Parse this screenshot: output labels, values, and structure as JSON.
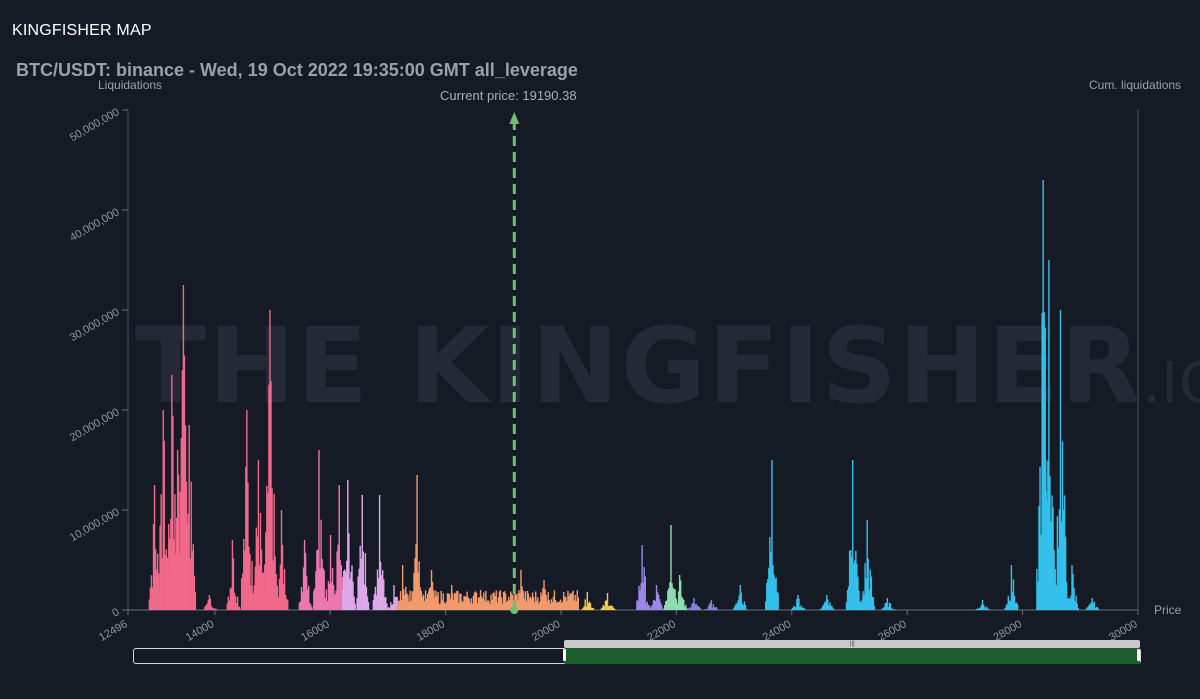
{
  "app": {
    "title": "KINGFISHER MAP"
  },
  "watermark": {
    "main": "THE KINGFISHER",
    "suffix": ".IO"
  },
  "chart_data": {
    "type": "bar",
    "title": "BTC/USDT: binance - Wed, 19 Oct 2022 19:35:00 GMT all_leverage",
    "ylabel": "Liquidations",
    "y2label": "Cum. liquidations",
    "xlabel": "Price",
    "xlim": [
      12496,
      30000
    ],
    "ylim": [
      0,
      50000000
    ],
    "x_ticks": [
      "12496",
      "14000",
      "16000",
      "18000",
      "20000",
      "22000",
      "24000",
      "26000",
      "28000",
      "30000"
    ],
    "y_ticks": [
      "0",
      "10,000,000",
      "20,000,000",
      "30,000,000",
      "40,000,000",
      "50,000,000"
    ],
    "current_price": {
      "label": "Current price: 19190.38",
      "value": 19190.38
    },
    "series": [
      {
        "color": "#f0698a",
        "peaks": [
          [
            12950,
            12500000
          ],
          [
            13100,
            20000000
          ],
          [
            13250,
            23500000
          ],
          [
            13350,
            16000000
          ],
          [
            13450,
            32500000
          ],
          [
            13550,
            18500000
          ],
          [
            13900,
            1500000
          ],
          [
            14300,
            7000000
          ],
          [
            14550,
            20000000
          ],
          [
            14750,
            15000000
          ],
          [
            14950,
            30000000
          ],
          [
            15150,
            10000000
          ]
        ]
      },
      {
        "color": "#ec76ae",
        "peaks": [
          [
            15550,
            7000000
          ],
          [
            15800,
            16000000
          ],
          [
            16000,
            7500000
          ],
          [
            16150,
            12500000
          ]
        ]
      },
      {
        "color": "#dca8ea",
        "peaks": [
          [
            16300,
            13000000
          ],
          [
            16550,
            11500000
          ],
          [
            16850,
            11500000
          ],
          [
            17100,
            2500000
          ]
        ]
      },
      {
        "color": "#f39a6c",
        "peaks": [
          [
            17250,
            4500000
          ],
          [
            17500,
            13500000
          ],
          [
            17750,
            4000000
          ],
          [
            18100,
            2500000
          ],
          [
            18600,
            2000000
          ],
          [
            19300,
            4000000
          ],
          [
            19700,
            3000000
          ]
        ]
      },
      {
        "color": "#f2c94c",
        "peaks": [
          [
            20450,
            1800000
          ],
          [
            20800,
            1700000
          ]
        ]
      },
      {
        "color": "#9d87e8",
        "peaks": [
          [
            21400,
            6500000
          ],
          [
            21650,
            2500000
          ]
        ]
      },
      {
        "color": "#8edbb2",
        "peaks": [
          [
            21900,
            8500000
          ],
          [
            22050,
            3500000
          ]
        ]
      },
      {
        "color": "#7f86de",
        "peaks": [
          [
            22300,
            1200000
          ],
          [
            22600,
            1000000
          ]
        ]
      },
      {
        "color": "#33c0ea",
        "peaks": [
          [
            23100,
            2500000
          ],
          [
            23650,
            15000000
          ],
          [
            24100,
            1500000
          ],
          [
            24600,
            1500000
          ],
          [
            25050,
            15000000
          ],
          [
            25300,
            9000000
          ],
          [
            25650,
            1200000
          ],
          [
            27300,
            1000000
          ],
          [
            27800,
            4500000
          ],
          [
            28350,
            43000000
          ],
          [
            28450,
            35000000
          ],
          [
            28650,
            30000000
          ],
          [
            28850,
            4500000
          ],
          [
            29200,
            1200000
          ]
        ]
      }
    ]
  }
}
